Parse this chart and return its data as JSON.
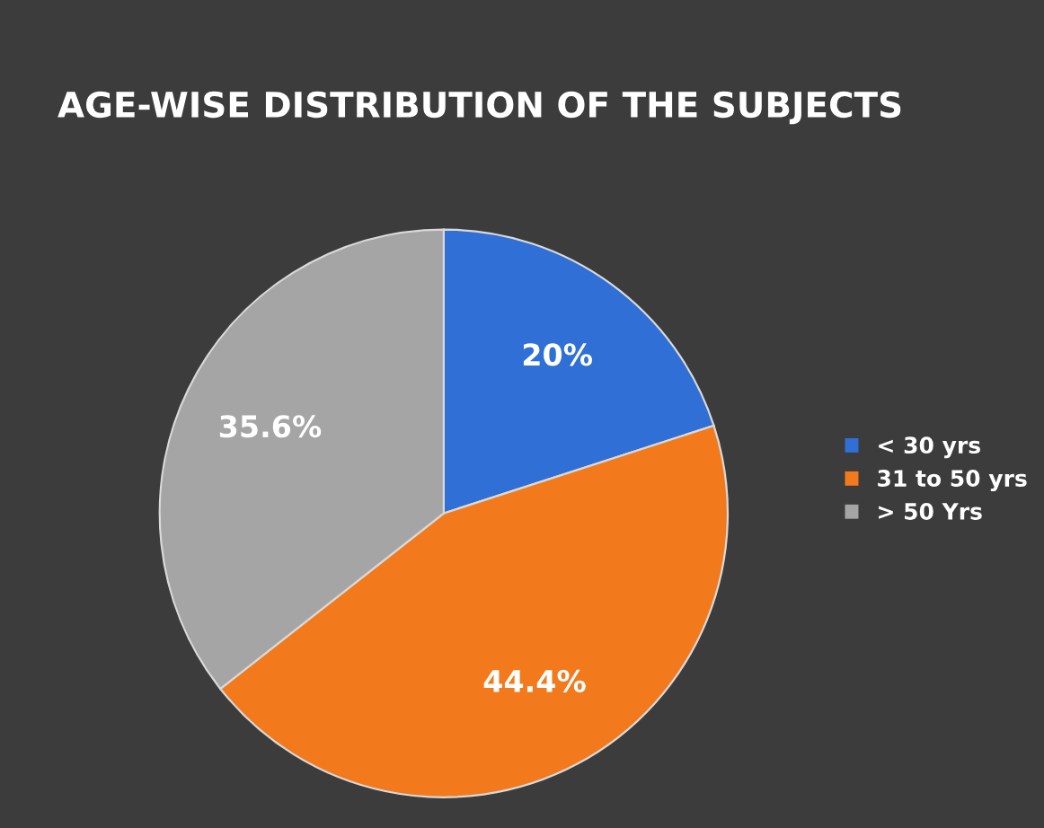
{
  "chart_data": {
    "type": "pie",
    "title": "AGE-WISE DISTRIBUTION OF THE SUBJECTS",
    "categories": [
      "< 30 yrs",
      "31 to 50 yrs",
      "> 50 Yrs"
    ],
    "values": [
      20,
      44.4,
      35.6
    ],
    "colors": [
      "#2f6fd6",
      "#f27a1d",
      "#a5a5a5"
    ],
    "value_labels": [
      "20%",
      "44.4%",
      "35.6%"
    ],
    "legend": "right"
  }
}
